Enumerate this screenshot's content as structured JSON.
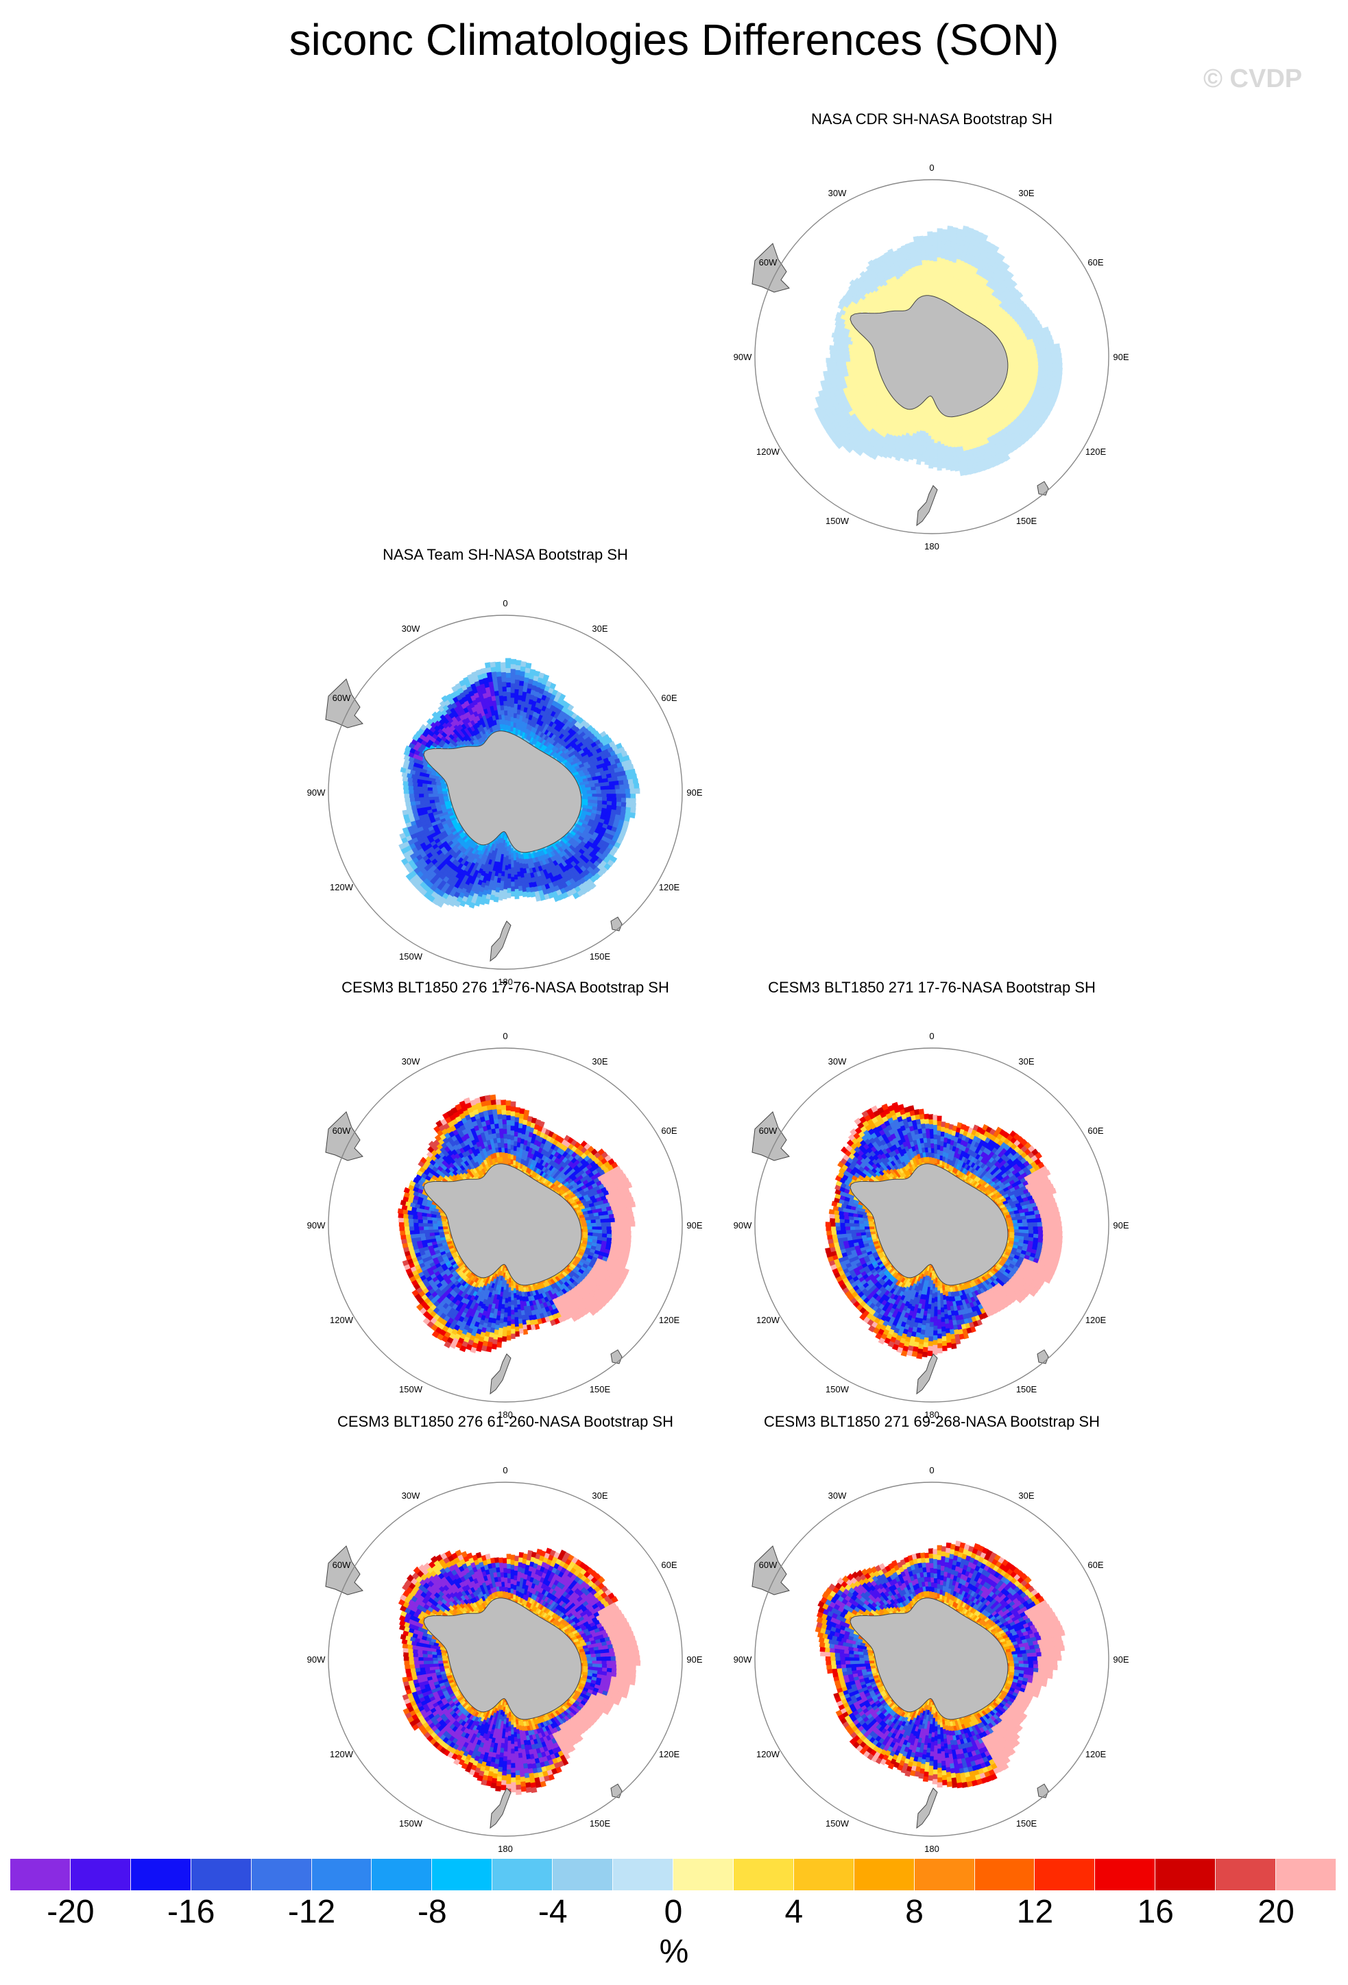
{
  "title": "siconc Climatologies Differences (SON)",
  "watermark": "© CVDP",
  "colors": {
    "land": "#bebebe",
    "coast": "#444444",
    "circle": "#888888"
  },
  "lon_labels": [
    "0",
    "30E",
    "60E",
    "90E",
    "120E",
    "150E",
    "180",
    "150W",
    "120W",
    "90W",
    "60W",
    "30W"
  ],
  "panels": [
    {
      "id": "cdr",
      "title": "NASA CDR SH-NASA Bootstrap SH",
      "pattern": "cdr"
    },
    {
      "id": "team",
      "title": "NASA Team SH-NASA Bootstrap SH",
      "pattern": "team"
    },
    {
      "id": "m276a",
      "title": "CESM3 BLT1850 276 17-76-NASA Bootstrap SH",
      "pattern": "model_a"
    },
    {
      "id": "m271a",
      "title": "CESM3 BLT1850 271 17-76-NASA Bootstrap SH",
      "pattern": "model_b"
    },
    {
      "id": "m276b",
      "title": "CESM3 BLT1850 276 61-260-NASA Bootstrap SH",
      "pattern": "model_c"
    },
    {
      "id": "m271b",
      "title": "CESM3 BLT1850 271 69-268-NASA Bootstrap SH",
      "pattern": "model_d"
    }
  ],
  "chart_data": {
    "type": "heatmap",
    "title": "siconc Climatologies Differences (SON)",
    "projection": "south-polar-stereographic",
    "units": "%",
    "levels": [
      -22,
      -20,
      -18,
      -16,
      -14,
      -12,
      -10,
      -8,
      -6,
      -4,
      -2,
      0,
      2,
      4,
      6,
      8,
      10,
      12,
      14,
      16,
      18,
      20,
      22
    ],
    "colorbar_colors": [
      "#8a2be2",
      "#4b11f0",
      "#1010f8",
      "#2f4fdf",
      "#3b73e8",
      "#2f86f0",
      "#189ef8",
      "#00c0ff",
      "#5ac8f5",
      "#96d0f0",
      "#bfe3f7",
      "#fff7a0",
      "#ffe040",
      "#ffc61f",
      "#ffa800",
      "#ff8c10",
      "#ff6400",
      "#ff2a00",
      "#f00000",
      "#d00000",
      "#e04848",
      "#ffb0b0"
    ],
    "colorbar_tick_labels": [
      "-20",
      "-16",
      "-12",
      "-8",
      "-4",
      "0",
      "4",
      "8",
      "12",
      "16",
      "20"
    ],
    "colorbar_label": "%",
    "panels": [
      {
        "title": "NASA CDR SH-NASA Bootstrap SH",
        "summary": "small positive near coast (0 to 2), small negative in outer ice edge (-2 to 0)"
      },
      {
        "title": "NASA Team SH-NASA Bootstrap SH",
        "summary": "widespread negative (-16 to -2)"
      },
      {
        "title": "CESM3 BLT1850 276 17-76-NASA Bootstrap SH",
        "summary": "negative interior, strong positive at ice edge (up to 20+)"
      },
      {
        "title": "CESM3 BLT1850 271 17-76-NASA Bootstrap SH",
        "summary": "negative interior, strong positive at ice edge (up to 20+)"
      },
      {
        "title": "CESM3 BLT1850 276 61-260-NASA Bootstrap SH",
        "summary": "negative interior (down to -20), positive ice edge"
      },
      {
        "title": "CESM3 BLT1850 271 69-268-NASA Bootstrap SH",
        "summary": "negative interior (down to -18), positive ice edge"
      }
    ]
  }
}
